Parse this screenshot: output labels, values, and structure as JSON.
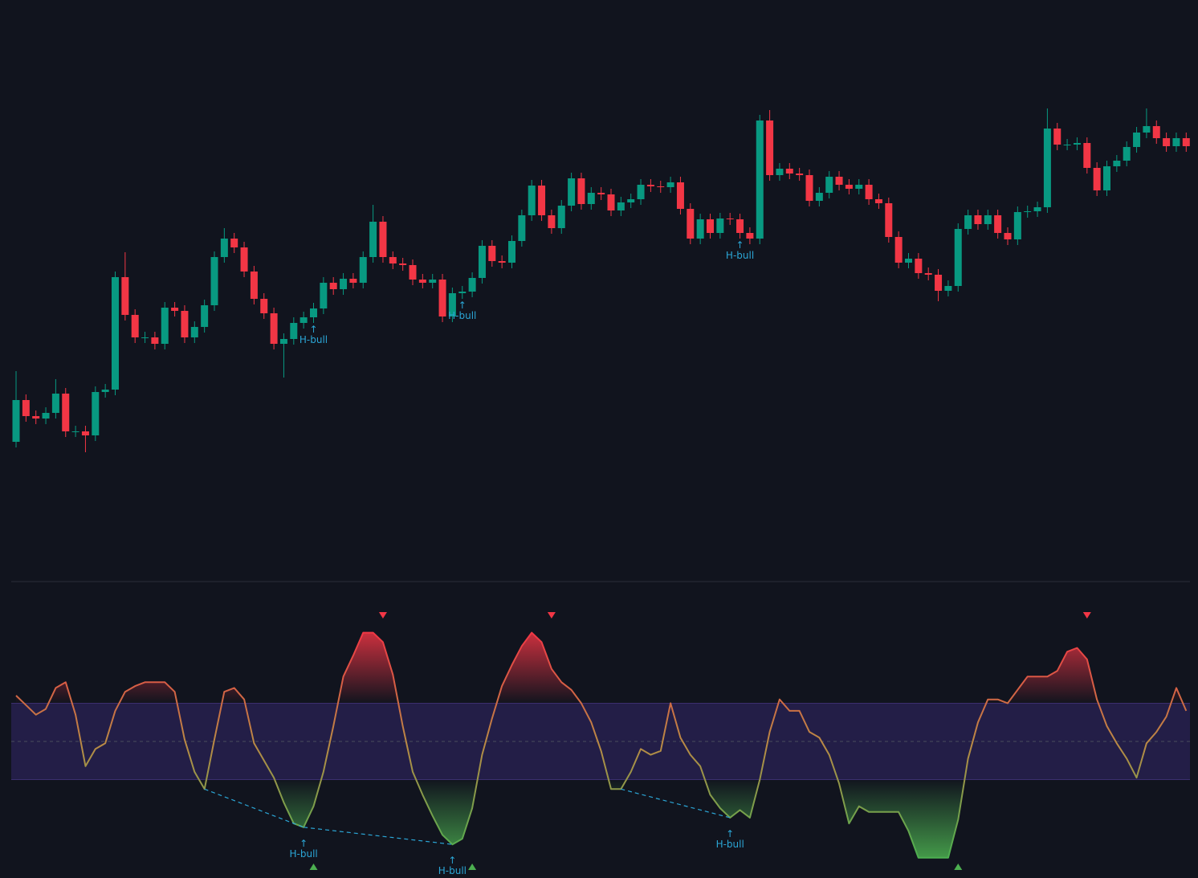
{
  "chart_data": [
    {
      "type": "candlestick",
      "open": [
        170,
        222,
        202,
        199,
        206,
        230,
        183,
        183,
        178,
        232,
        235,
        375,
        328,
        300,
        300,
        292,
        337,
        333,
        300,
        313,
        340,
        400,
        423,
        412,
        382,
        348,
        330,
        292,
        298,
        318,
        325,
        336,
        368,
        360,
        373,
        368,
        400,
        444,
        400,
        392,
        390,
        372,
        368,
        372,
        326,
        355,
        357,
        374,
        414,
        395,
        393,
        420,
        452,
        489,
        452,
        436,
        464,
        498,
        466,
        480,
        478,
        458,
        468,
        472,
        490,
        488,
        487,
        493,
        460,
        423,
        447,
        430,
        448,
        447,
        430,
        423,
        570,
        502,
        510,
        504,
        502,
        470,
        480,
        500,
        490,
        485,
        490,
        472,
        467,
        425,
        393,
        398,
        380,
        378,
        358,
        364,
        435,
        452,
        441,
        452,
        430,
        422,
        456,
        457,
        462,
        560,
        540,
        540,
        542,
        511,
        483,
        513,
        520,
        537,
        555,
        563,
        548,
        538,
        548
      ],
      "high": [
        258,
        229,
        209,
        213,
        248,
        237,
        190,
        190,
        239,
        242,
        382,
        406,
        335,
        307,
        307,
        344,
        344,
        340,
        320,
        347,
        407,
        436,
        430,
        419,
        389,
        355,
        337,
        305,
        325,
        332,
        343,
        375,
        375,
        380,
        380,
        407,
        465,
        451,
        407,
        399,
        397,
        379,
        379,
        379,
        362,
        364,
        381,
        421,
        421,
        402,
        427,
        459,
        496,
        496,
        459,
        471,
        505,
        505,
        487,
        487,
        485,
        475,
        479,
        497,
        497,
        495,
        500,
        500,
        467,
        454,
        454,
        455,
        455,
        454,
        437,
        577,
        583,
        517,
        517,
        511,
        509,
        487,
        507,
        507,
        497,
        497,
        497,
        479,
        474,
        432,
        405,
        405,
        387,
        385,
        371,
        442,
        459,
        459,
        459,
        459,
        437,
        463,
        464,
        469,
        585,
        567,
        547,
        549,
        549,
        518,
        520,
        527,
        544,
        562,
        585,
        570,
        555,
        555,
        555
      ],
      "low": [
        163,
        195,
        192,
        192,
        199,
        176,
        176,
        157,
        171,
        225,
        228,
        321,
        293,
        293,
        285,
        285,
        326,
        293,
        293,
        306,
        333,
        393,
        405,
        375,
        341,
        323,
        285,
        250,
        291,
        311,
        318,
        329,
        353,
        353,
        361,
        361,
        393,
        393,
        385,
        383,
        365,
        361,
        361,
        319,
        319,
        348,
        350,
        367,
        388,
        386,
        386,
        413,
        445,
        445,
        429,
        429,
        457,
        459,
        459,
        471,
        451,
        451,
        461,
        465,
        481,
        480,
        480,
        453,
        416,
        416,
        423,
        423,
        440,
        423,
        416,
        416,
        495,
        495,
        497,
        495,
        463,
        463,
        473,
        483,
        478,
        478,
        465,
        460,
        418,
        386,
        386,
        373,
        371,
        345,
        351,
        357,
        428,
        434,
        434,
        423,
        415,
        415,
        449,
        450,
        455,
        533,
        533,
        533,
        504,
        476,
        476,
        506,
        513,
        530,
        548,
        541,
        531,
        531,
        531
      ],
      "close": [
        222,
        202,
        199,
        206,
        230,
        183,
        183,
        178,
        232,
        235,
        375,
        328,
        300,
        300,
        292,
        337,
        333,
        300,
        313,
        340,
        400,
        423,
        412,
        382,
        348,
        330,
        292,
        298,
        318,
        325,
        336,
        368,
        360,
        373,
        368,
        400,
        444,
        400,
        392,
        390,
        372,
        368,
        372,
        326,
        355,
        357,
        374,
        414,
        395,
        393,
        420,
        452,
        489,
        452,
        436,
        464,
        498,
        466,
        480,
        478,
        458,
        468,
        472,
        490,
        488,
        487,
        493,
        460,
        423,
        447,
        430,
        448,
        447,
        430,
        423,
        570,
        502,
        510,
        504,
        502,
        470,
        480,
        500,
        490,
        485,
        490,
        472,
        467,
        425,
        393,
        398,
        380,
        378,
        358,
        364,
        435,
        452,
        441,
        452,
        430,
        422,
        456,
        457,
        462,
        560,
        540,
        540,
        542,
        511,
        483,
        513,
        520,
        537,
        555,
        563,
        548,
        538,
        548,
        538
      ],
      "ylim": [
        0,
        720
      ],
      "up_color": "#089981",
      "down_color": "#f23645",
      "annotation_color": "#2ba6d6",
      "annotations": [
        {
          "at": 30,
          "arrow": "↑",
          "label": "H-bull"
        },
        {
          "at": 45,
          "arrow": "↑",
          "label": "H-bull"
        },
        {
          "at": 73,
          "arrow": "↑",
          "label": "H-bull"
        }
      ]
    },
    {
      "type": "line",
      "values": [
        74,
        69,
        64,
        67,
        78,
        81,
        64,
        37,
        46,
        49,
        66,
        76,
        79,
        81,
        81,
        81,
        76,
        51,
        34,
        25,
        51,
        76,
        78,
        72,
        49,
        40,
        31,
        18,
        7,
        5,
        16,
        34,
        58,
        84,
        95,
        107,
        107,
        102,
        85,
        58,
        34,
        22,
        11,
        1,
        -4,
        -1,
        15,
        43,
        62,
        79,
        90,
        100,
        107,
        102,
        88,
        81,
        77,
        70,
        60,
        45,
        25,
        25,
        34,
        46,
        43,
        45,
        70,
        52,
        43,
        37,
        22,
        15,
        10,
        14,
        10,
        30,
        55,
        72,
        66,
        66,
        55,
        52,
        43,
        28,
        7,
        16,
        13,
        13,
        13,
        13,
        3,
        -11,
        -11,
        -11,
        -11,
        9,
        41,
        60,
        72,
        72,
        70,
        77,
        84,
        84,
        84,
        87,
        97,
        99,
        93,
        72,
        58,
        49,
        41,
        31,
        49,
        55,
        63,
        78,
        66
      ],
      "ylim": [
        -21.6,
        132.5
      ],
      "bands": [
        30,
        70
      ],
      "midline": 50,
      "band_color": "#2a2255",
      "line_colors": [
        "#f23645",
        "#4caf50"
      ],
      "divergence_color": "#2ba6d6",
      "divergences": [
        {
          "from": 19,
          "to": 29
        },
        {
          "from": 29,
          "to": 44
        },
        {
          "from": 61,
          "to": 72
        }
      ],
      "annotations": [
        {
          "at": 29,
          "arrow": "↑",
          "label": "H-bull"
        },
        {
          "at": 44,
          "arrow": "↑",
          "label": "H-bull"
        },
        {
          "at": 72,
          "arrow": "↑",
          "label": "H-bull"
        }
      ],
      "sell_signals": [
        37,
        54,
        108
      ],
      "buy_signals": [
        30,
        46,
        95
      ]
    }
  ]
}
